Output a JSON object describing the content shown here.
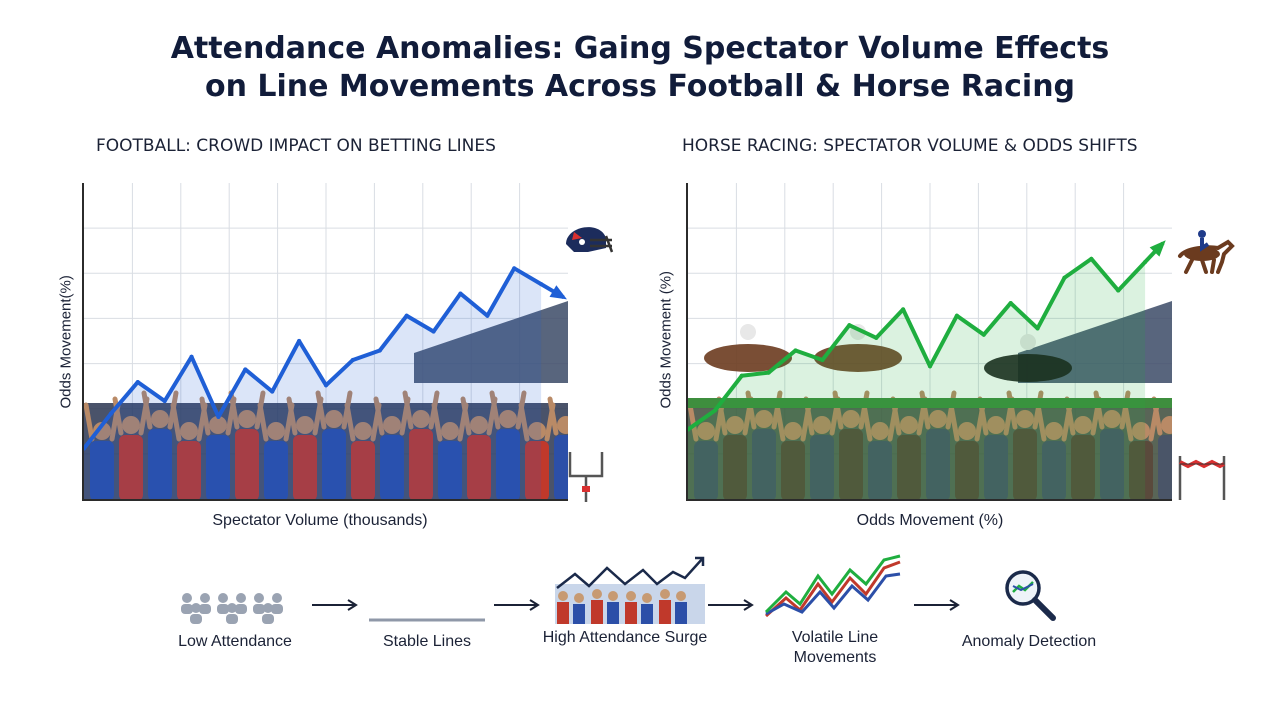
{
  "title_line1": "Attendance Anomalies: Gaing Spectator Volume Effects",
  "title_line2": "on Line Movements Across Football & Horse Racing",
  "chart_data": [
    {
      "type": "line",
      "title": "FOOTBALL: CROWD IMPACT ON BETTING LINES",
      "xlabel": "Spectator Volume (thousands)",
      "ylabel": "Odds Movement(%)",
      "grid": true,
      "color": "#1f5fd6",
      "x": [
        0,
        1,
        2,
        3,
        4,
        5,
        6,
        7,
        8,
        9,
        10,
        11,
        12,
        13,
        14,
        15,
        16,
        17
      ],
      "y": [
        16,
        27,
        37,
        31,
        45,
        26,
        41,
        34,
        50,
        36,
        44,
        47,
        58,
        53,
        65,
        58,
        73,
        68
      ],
      "ylim": [
        0,
        100
      ],
      "xlim": [
        0,
        18
      ]
    },
    {
      "type": "line",
      "title": "HORSE RACING: SPECTATOR VOLUME & ODDS SHIFTS",
      "xlabel": "Odds Movement (%)",
      "ylabel": "Odds Movement (%)",
      "grid": true,
      "color": "#1fae3f",
      "x": [
        0,
        1,
        2,
        3,
        4,
        5,
        6,
        7,
        8,
        9,
        10,
        11,
        12,
        13,
        14,
        15,
        16,
        17
      ],
      "y": [
        22,
        28,
        39,
        40,
        47,
        44,
        55,
        51,
        60,
        42,
        58,
        52,
        62,
        54,
        70,
        76,
        66,
        75
      ],
      "ylim": [
        0,
        100
      ],
      "xlim": [
        0,
        18
      ]
    }
  ],
  "flow": {
    "steps": [
      {
        "label": "Low Attendance",
        "icon": "crowd-small-icon"
      },
      {
        "label": "Stable Lines",
        "icon": "flat-line-icon"
      },
      {
        "label": "High Attendance Surge",
        "icon": "crowd-surge-icon"
      },
      {
        "label": "Volatile Line Movements",
        "icon": "volatile-lines-icon"
      },
      {
        "label": "Anomaly Detection",
        "icon": "magnifier-icon"
      }
    ]
  },
  "colors": {
    "football_line": "#1f5fd6",
    "racing_line": "#1fae3f",
    "title": "#111c3a"
  }
}
